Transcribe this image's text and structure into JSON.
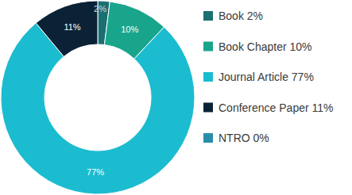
{
  "chart_data": {
    "type": "donut",
    "categories": [
      "Book 2%",
      "Book Chapter 10%",
      "Journal Article 77%",
      "Conference Paper 11%",
      "NTRO 0%"
    ],
    "values": [
      2,
      10,
      77,
      11,
      0
    ],
    "value_labels": [
      "2%",
      "10%",
      "77%",
      "11%",
      null
    ],
    "colors": [
      "#1b6f72",
      "#18a58c",
      "#1cbcd0",
      "#0b2236",
      "#2a8da8"
    ],
    "data_labels": true,
    "legend": "right"
  }
}
